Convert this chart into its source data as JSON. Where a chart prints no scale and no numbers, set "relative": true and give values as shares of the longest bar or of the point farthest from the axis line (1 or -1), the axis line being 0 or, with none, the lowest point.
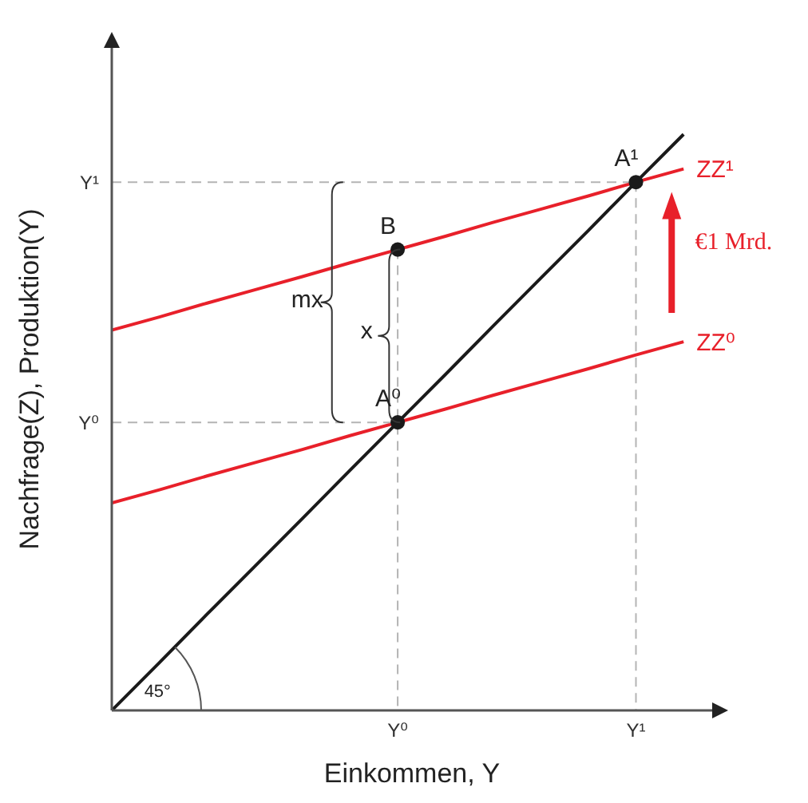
{
  "chart_data": {
    "type": "line",
    "relative": true,
    "xlabel": "Einkommen, Y",
    "ylabel": "Nachfrage(Z), Produktion(Y)",
    "categories": [
      null,
      null,
      null,
      null,
      null,
      null,
      "Y⁰",
      null,
      null,
      null,
      null,
      "Y¹",
      null
    ],
    "marker": "none",
    "line_style": "solid",
    "series": [
      {
        "color": "#1a1a1a",
        "values": [
          0,
          0.083,
          0.167,
          0.25,
          0.333,
          0.417,
          0.5,
          0.583,
          0.667,
          0.75,
          0.833,
          0.917,
          1
        ]
      },
      {
        "name": "ZZ⁰",
        "color": "#e8202a",
        "values": [
          0.36,
          0.383,
          0.407,
          0.43,
          0.453,
          0.477,
          0.5,
          0.523,
          0.547,
          0.57,
          0.593,
          0.617,
          0.64
        ]
      },
      {
        "name": "ZZ¹",
        "color": "#e8202a",
        "values": [
          0.66,
          0.683,
          0.707,
          0.73,
          0.753,
          0.777,
          0.8,
          0.823,
          0.847,
          0.87,
          0.893,
          0.917,
          0.94
        ]
      },
      {
        "color": "#b4b4b4",
        "line_style": "dashed",
        "values": [
          0.5,
          0.5,
          0.5,
          0.5,
          0.5,
          0.5,
          0.5,
          null,
          null,
          null,
          null,
          null,
          null
        ]
      },
      {
        "color": "#b4b4b4",
        "line_style": "dashed",
        "values": [
          0.917,
          0.917,
          0.917,
          0.917,
          0.917,
          0.917,
          0.917,
          0.917,
          0.917,
          0.917,
          0.917,
          0.917,
          null
        ]
      },
      {
        "color": "#b4b4b4",
        "line_style": "dashed",
        "x": [
          "Y⁰",
          "Y⁰"
        ],
        "values": [
          0.8,
          0
        ]
      },
      {
        "color": "#b4b4b4",
        "line_style": "dashed",
        "x": [
          "Y¹",
          "Y¹"
        ],
        "values": [
          0.917,
          0
        ]
      },
      {
        "type": "scatter",
        "marker": "circle",
        "color": "#1a1a1a",
        "x": [
          "Y⁰",
          "Y⁰",
          "Y¹"
        ],
        "values": [
          0.5,
          0.8,
          0.917
        ]
      }
    ],
    "annotations": [
      {
        "text": "A⁰",
        "x": "Y⁰",
        "y": 0.5
      },
      {
        "text": "A¹",
        "x": "Y¹",
        "y": 0.917
      },
      {
        "text": "B",
        "x": "Y⁰",
        "y": 0.8
      },
      "Y⁰",
      "Y¹",
      "mx",
      "x",
      "45°",
      "€1 Mrd."
    ]
  }
}
